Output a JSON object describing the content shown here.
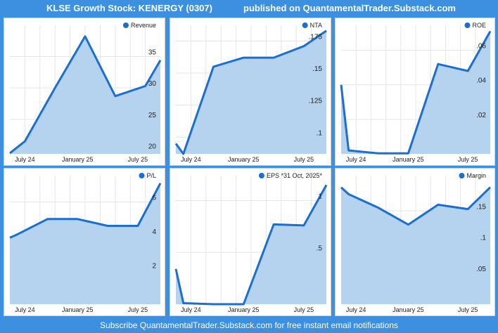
{
  "header": {
    "title": "KLSE Growth Stock: KENERGY (0307)",
    "publisher": "published on QuantamentalTrader.Substack.com"
  },
  "footer": {
    "text": "Subscribe QuantamentalTrader.Substack.com for free instant email notifications"
  },
  "colors": {
    "line": "#1a6fd1",
    "fill": "#b5d2ef",
    "background": "#3d8fe0",
    "grid": "#e5e5e5"
  },
  "chart_data": [
    {
      "type": "area",
      "title": "",
      "legend": "Revenue",
      "legend_position": "top-right",
      "x_ticks": [
        "July 24",
        "January 25",
        "July 25"
      ],
      "y_ticks": [
        "20",
        "25",
        "30",
        "35"
      ],
      "ylim": [
        19.5,
        39.3
      ],
      "x": [
        0,
        0.5,
        1.5,
        2.5,
        3.5,
        4.5,
        5.0
      ],
      "values": [
        19.6,
        21.5,
        30.0,
        38.2,
        28.7,
        30.3,
        34.4
      ]
    },
    {
      "type": "area",
      "title": "",
      "legend": "NTA",
      "legend_position": "top-right",
      "x_ticks": [
        "July 24",
        "January 25",
        "July 25"
      ],
      "y_ticks": [
        ".1",
        ".125",
        ".15",
        ".175"
      ],
      "ylim": [
        0.087,
        0.184
      ],
      "x": [
        0,
        0.25,
        1.25,
        2.25,
        3.25,
        4.25,
        5.0
      ],
      "values": [
        0.095,
        0.087,
        0.155,
        0.162,
        0.162,
        0.171,
        0.183
      ]
    },
    {
      "type": "area",
      "title": "",
      "legend": "ROE",
      "legend_position": "top-right",
      "x_ticks": [
        "July 24",
        "January 25",
        "July 25"
      ],
      "y_ticks": [
        ".02",
        ".04",
        ".06"
      ],
      "ylim": [
        0,
        0.072
      ],
      "x": [
        0,
        0.25,
        1.25,
        2.25,
        3.25,
        4.25,
        5.0
      ],
      "values": [
        0.04,
        0.002,
        0.0003,
        0.0003,
        0.052,
        0.048,
        0.071
      ]
    },
    {
      "type": "area",
      "title": "",
      "legend": "P/L",
      "legend_position": "top-right",
      "x_ticks": [
        "July 24",
        "January 25",
        "July 25"
      ],
      "y_ticks": [
        "2",
        "4",
        "6"
      ],
      "ylim": [
        0,
        7.3
      ],
      "x": [
        0,
        0.25,
        1.25,
        2.25,
        3.25,
        4.25,
        5.0
      ],
      "values": [
        3.9,
        4.1,
        5.0,
        5.0,
        4.6,
        4.6,
        7.1
      ]
    },
    {
      "type": "area",
      "title": "",
      "legend": "EPS *31 Oct, 2025*",
      "legend_position": "top-right",
      "x_ticks": [
        "July 24",
        "January 25",
        "July 25"
      ],
      "y_ticks": [
        ".5",
        "1"
      ],
      "ylim": [
        0,
        1.2
      ],
      "x": [
        0,
        0.25,
        1.25,
        2.25,
        3.25,
        4.25,
        5.0
      ],
      "values": [
        0.34,
        0.01,
        0.0,
        0.0,
        0.77,
        0.76,
        1.15
      ]
    },
    {
      "type": "area",
      "title": "",
      "legend": "Margin",
      "legend_position": "top-right",
      "x_ticks": [
        "July 24",
        "January 25",
        "July 25"
      ],
      "y_ticks": [
        ".05",
        ".1",
        ".15"
      ],
      "ylim": [
        0,
        0.2
      ],
      "x": [
        0,
        0.25,
        1.25,
        2.25,
        3.25,
        4.25,
        5.0
      ],
      "values": [
        0.188,
        0.177,
        0.155,
        0.128,
        0.16,
        0.153,
        0.188
      ]
    }
  ]
}
